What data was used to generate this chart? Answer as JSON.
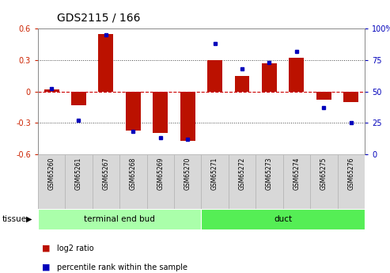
{
  "title": "GDS2115 / 166",
  "samples": [
    "GSM65260",
    "GSM65261",
    "GSM65267",
    "GSM65268",
    "GSM65269",
    "GSM65270",
    "GSM65271",
    "GSM65272",
    "GSM65273",
    "GSM65274",
    "GSM65275",
    "GSM65276"
  ],
  "log2_ratio": [
    0.02,
    -0.13,
    0.55,
    -0.37,
    -0.4,
    -0.47,
    0.3,
    0.15,
    0.27,
    0.32,
    -0.08,
    -0.1
  ],
  "percentile_rank": [
    52,
    27,
    95,
    18,
    13,
    12,
    88,
    68,
    73,
    82,
    37,
    25
  ],
  "tissue_groups": [
    {
      "label": "terminal end bud",
      "start": 0,
      "end": 6,
      "color": "#AAFFAA"
    },
    {
      "label": "duct",
      "start": 6,
      "end": 12,
      "color": "#55EE55"
    }
  ],
  "ylim_left": [
    -0.6,
    0.6
  ],
  "ylim_right": [
    0,
    100
  ],
  "yticks_left": [
    -0.6,
    -0.3,
    0.0,
    0.3,
    0.6
  ],
  "yticks_right": [
    0,
    25,
    50,
    75,
    100
  ],
  "bar_color": "#BB1100",
  "dot_color": "#0000BB",
  "zero_line_color": "#CC0000",
  "dotted_color": "#444444",
  "bar_width": 0.55,
  "tissue_label": "tissue",
  "label_box_color": "#D8D8D8",
  "label_box_edge": "#BBBBBB"
}
